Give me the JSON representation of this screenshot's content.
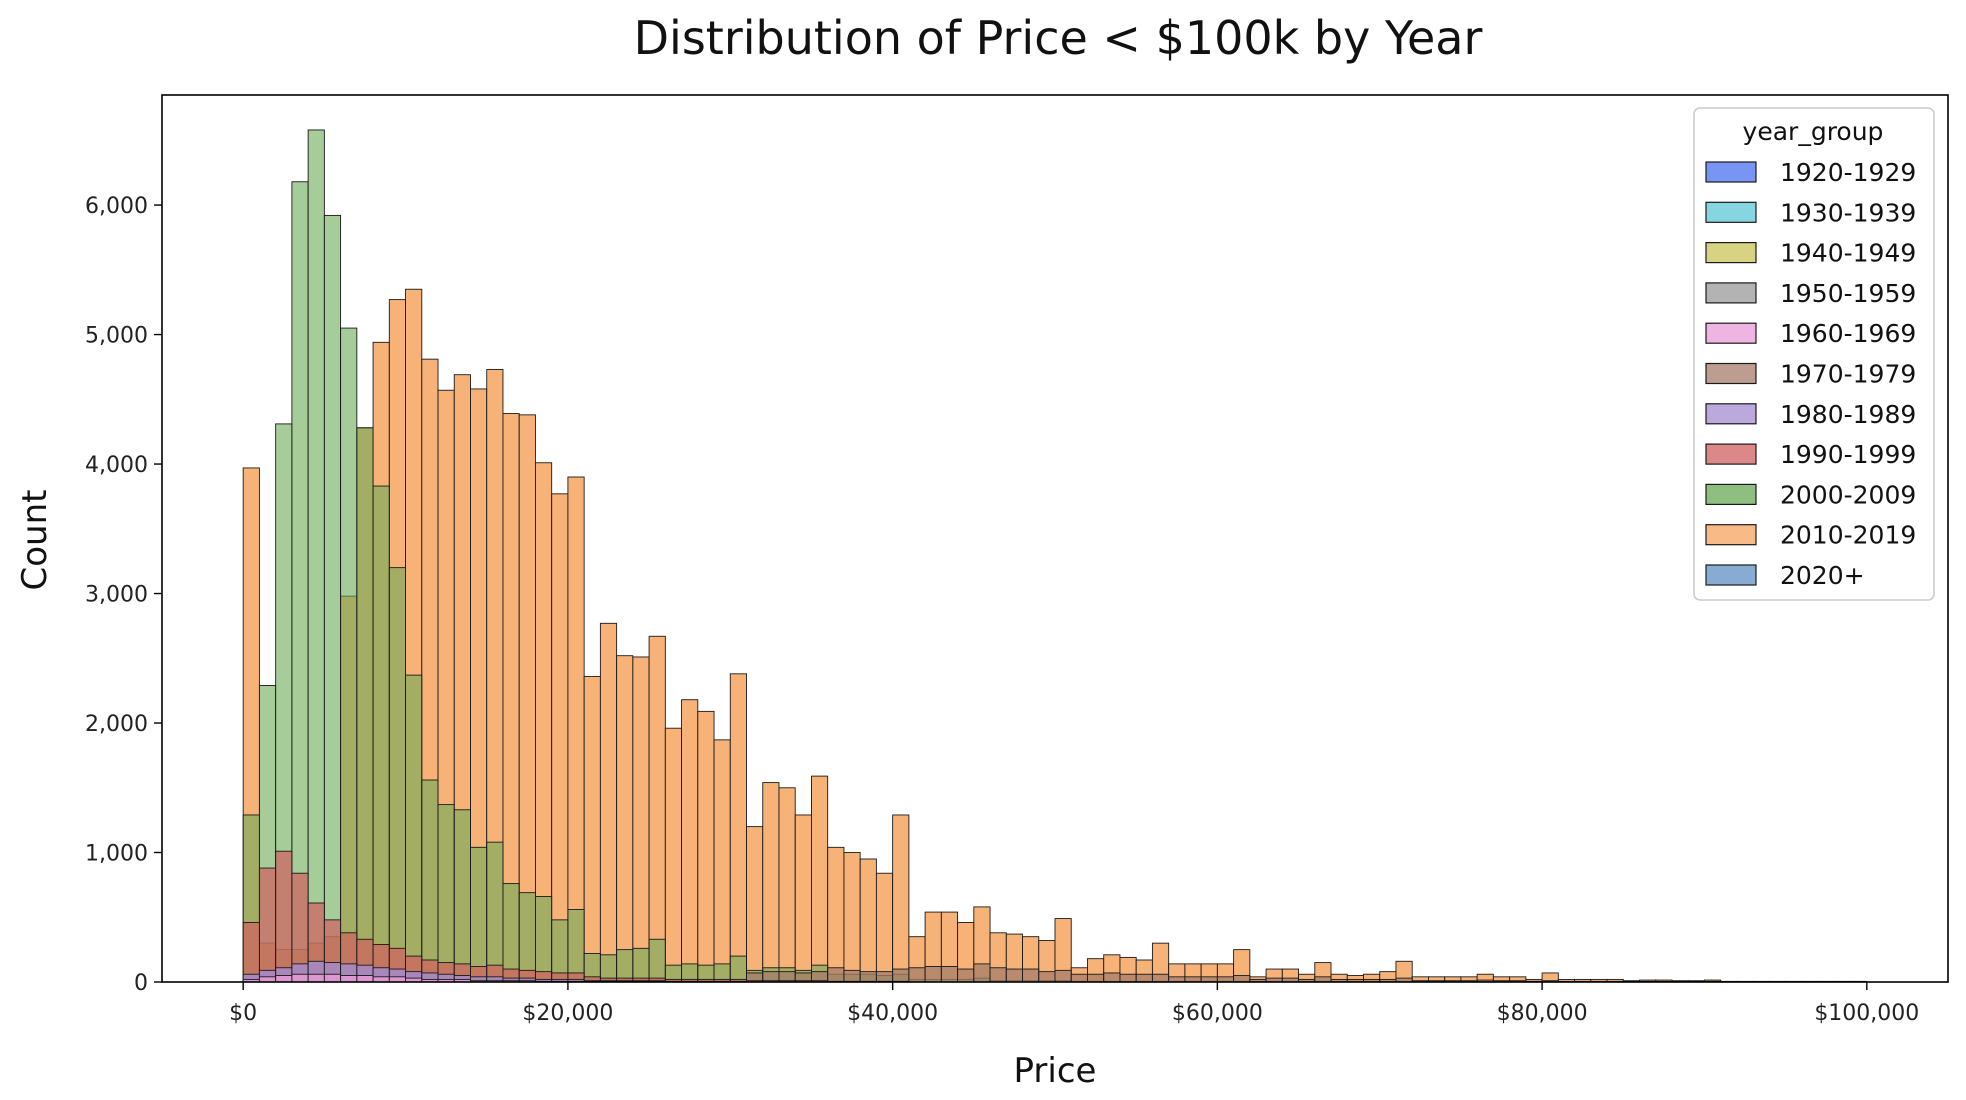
{
  "chart_data": {
    "type": "bar",
    "title": "Distribution of Price < $100k by Year",
    "xlabel": "Price",
    "ylabel": "Count",
    "xlim": [
      -5000,
      105000
    ],
    "ylim": [
      0,
      6850
    ],
    "bin_start": 0,
    "bin_width": 1000,
    "x_ticks": [
      {
        "value": 0,
        "label": "$0"
      },
      {
        "value": 20000,
        "label": "$20,000"
      },
      {
        "value": 40000,
        "label": "$40,000"
      },
      {
        "value": 60000,
        "label": "$60,000"
      },
      {
        "value": 80000,
        "label": "$80,000"
      },
      {
        "value": 100000,
        "label": "$100,000"
      }
    ],
    "y_ticks": [
      {
        "value": 0,
        "label": "0"
      },
      {
        "value": 1000,
        "label": "1,000"
      },
      {
        "value": 2000,
        "label": "2,000"
      },
      {
        "value": 3000,
        "label": "3,000"
      },
      {
        "value": 4000,
        "label": "4,000"
      },
      {
        "value": 5000,
        "label": "5,000"
      },
      {
        "value": 6000,
        "label": "6,000"
      }
    ],
    "legend": {
      "title": "year_group",
      "position": "top-right",
      "entries": [
        {
          "label": "1920-1929",
          "color": "#4c72f0"
        },
        {
          "label": "1930-1939",
          "color": "#5ec8d8"
        },
        {
          "label": "1940-1949",
          "color": "#c9c45a"
        },
        {
          "label": "1950-1959",
          "color": "#9a9a9a"
        },
        {
          "label": "1960-1969",
          "color": "#e89bd8"
        },
        {
          "label": "1970-1979",
          "color": "#a67c6a"
        },
        {
          "label": "1980-1989",
          "color": "#a48bd0"
        },
        {
          "label": "1990-1999",
          "color": "#d06060"
        },
        {
          "label": "2000-2009",
          "color": "#6aaa55"
        },
        {
          "label": "2010-2019",
          "color": "#f6a460"
        },
        {
          "label": "2020+",
          "color": "#5f8fc4"
        }
      ]
    },
    "series": [
      {
        "name": "2010-2019",
        "color": "#f6a460",
        "alpha": 0.85,
        "values": [
          3970,
          300,
          250,
          250,
          300,
          350,
          2980,
          4280,
          4940,
          5270,
          5350,
          4810,
          4570,
          4690,
          4580,
          4730,
          4390,
          4380,
          4010,
          3770,
          3900,
          2360,
          2770,
          2520,
          2510,
          2670,
          1960,
          2180,
          2090,
          1870,
          2380,
          1200,
          1540,
          1500,
          1290,
          1590,
          1040,
          1000,
          950,
          840,
          1290,
          350,
          540,
          540,
          460,
          580,
          380,
          370,
          350,
          320,
          490,
          110,
          180,
          210,
          190,
          170,
          300,
          140,
          140,
          140,
          140,
          250,
          40,
          100,
          100,
          60,
          150,
          60,
          50,
          60,
          80,
          160,
          40,
          40,
          40,
          40,
          60,
          40,
          40,
          20,
          70,
          20,
          20,
          20,
          20,
          10,
          15,
          15,
          10,
          10,
          15,
          5,
          5,
          5,
          5,
          5,
          5,
          5,
          5,
          5
        ]
      },
      {
        "name": "2000-2009",
        "color": "#6aaa55",
        "alpha": 0.6,
        "values": [
          1290,
          2290,
          4310,
          6180,
          6580,
          5920,
          5050,
          4280,
          3830,
          3200,
          2370,
          1560,
          1370,
          1330,
          1040,
          1080,
          760,
          690,
          660,
          480,
          560,
          220,
          210,
          250,
          260,
          330,
          130,
          140,
          130,
          140,
          200,
          90,
          110,
          110,
          90,
          130,
          60,
          60,
          60,
          50,
          60,
          20,
          20,
          20,
          20,
          30,
          10,
          10,
          10,
          10,
          10,
          5,
          5,
          5,
          5,
          5,
          5,
          5,
          5,
          5,
          5,
          5,
          5,
          5,
          5,
          5,
          5,
          5,
          5,
          5,
          5,
          5,
          5,
          5,
          5,
          5,
          5,
          5,
          5,
          5,
          5,
          0,
          0,
          0,
          0,
          0,
          0,
          0,
          0,
          0,
          0,
          0,
          0,
          0,
          0,
          0,
          0,
          0,
          0,
          0
        ]
      },
      {
        "name": "1970-1979",
        "color": "#a67c6a",
        "alpha": 0.75,
        "values": [
          0,
          0,
          0,
          0,
          0,
          0,
          0,
          0,
          0,
          0,
          0,
          0,
          0,
          0,
          0,
          0,
          0,
          0,
          0,
          0,
          0,
          0,
          0,
          0,
          0,
          0,
          0,
          0,
          0,
          0,
          0,
          70,
          80,
          80,
          70,
          80,
          110,
          90,
          80,
          80,
          100,
          110,
          120,
          120,
          100,
          140,
          110,
          100,
          100,
          80,
          90,
          60,
          60,
          70,
          60,
          60,
          60,
          40,
          40,
          40,
          40,
          50,
          20,
          30,
          30,
          20,
          40,
          20,
          20,
          20,
          20,
          30,
          10,
          10,
          10,
          10,
          15,
          10,
          10,
          5,
          10,
          5,
          5,
          5,
          5,
          5,
          5,
          5,
          5,
          5,
          5,
          0,
          0,
          0,
          0,
          0,
          0,
          0,
          0,
          0
        ]
      },
      {
        "name": "1990-1999",
        "color": "#d06060",
        "alpha": 0.7,
        "values": [
          460,
          880,
          1010,
          840,
          610,
          480,
          380,
          330,
          290,
          260,
          200,
          170,
          150,
          140,
          120,
          130,
          100,
          90,
          80,
          70,
          70,
          40,
          30,
          30,
          30,
          30,
          20,
          20,
          20,
          20,
          20,
          10,
          10,
          10,
          10,
          10,
          5,
          5,
          5,
          5,
          5,
          0,
          0,
          0,
          0,
          0,
          0,
          0,
          0,
          0,
          0,
          0,
          0,
          0,
          0,
          0,
          0,
          0,
          0,
          0,
          0,
          0,
          0,
          0,
          0,
          0,
          0,
          0,
          0,
          0,
          0,
          0,
          0,
          0,
          0,
          0,
          0,
          0,
          0,
          0,
          0,
          0,
          0,
          0,
          0,
          0,
          0,
          0,
          0,
          0,
          0,
          0,
          0,
          0,
          0,
          0,
          0,
          0,
          0,
          0
        ]
      },
      {
        "name": "1980-1989",
        "color": "#a48bd0",
        "alpha": 0.8,
        "values": [
          60,
          90,
          110,
          140,
          160,
          150,
          140,
          130,
          110,
          100,
          80,
          70,
          60,
          50,
          40,
          40,
          30,
          30,
          20,
          20,
          20,
          10,
          10,
          10,
          10,
          10,
          5,
          5,
          5,
          5,
          5,
          0,
          0,
          0,
          0,
          0,
          0,
          0,
          0,
          0,
          0,
          0,
          0,
          0,
          0,
          0,
          0,
          0,
          0,
          0,
          0,
          0,
          0,
          0,
          0,
          0,
          0,
          0,
          0,
          0,
          0,
          0,
          0,
          0,
          0,
          0,
          0,
          0,
          0,
          0,
          0,
          0,
          0,
          0,
          0,
          0,
          0,
          0,
          0,
          0,
          0,
          0,
          0,
          0,
          0,
          0,
          0,
          0,
          0,
          0,
          0,
          0,
          0,
          0,
          0,
          0,
          0,
          0,
          0,
          0
        ]
      },
      {
        "name": "1960-1969",
        "color": "#e89bd8",
        "alpha": 0.8,
        "values": [
          20,
          40,
          50,
          60,
          60,
          60,
          50,
          50,
          40,
          40,
          30,
          20,
          20,
          20,
          10,
          10,
          10,
          10,
          5,
          5,
          5,
          5,
          5,
          5,
          5,
          5,
          0,
          0,
          0,
          0,
          0,
          0,
          0,
          0,
          0,
          0,
          0,
          0,
          0,
          0,
          0,
          0,
          0,
          0,
          0,
          0,
          0,
          0,
          0,
          0,
          0,
          0,
          0,
          0,
          0,
          0,
          0,
          0,
          0,
          0,
          0,
          0,
          0,
          0,
          0,
          0,
          0,
          0,
          0,
          0,
          0,
          0,
          0,
          0,
          0,
          0,
          0,
          0,
          0,
          0,
          0,
          0,
          0,
          0,
          0,
          0,
          0,
          0,
          0,
          0,
          0,
          0,
          0,
          0,
          0,
          0,
          0,
          0,
          0,
          0
        ]
      }
    ]
  }
}
